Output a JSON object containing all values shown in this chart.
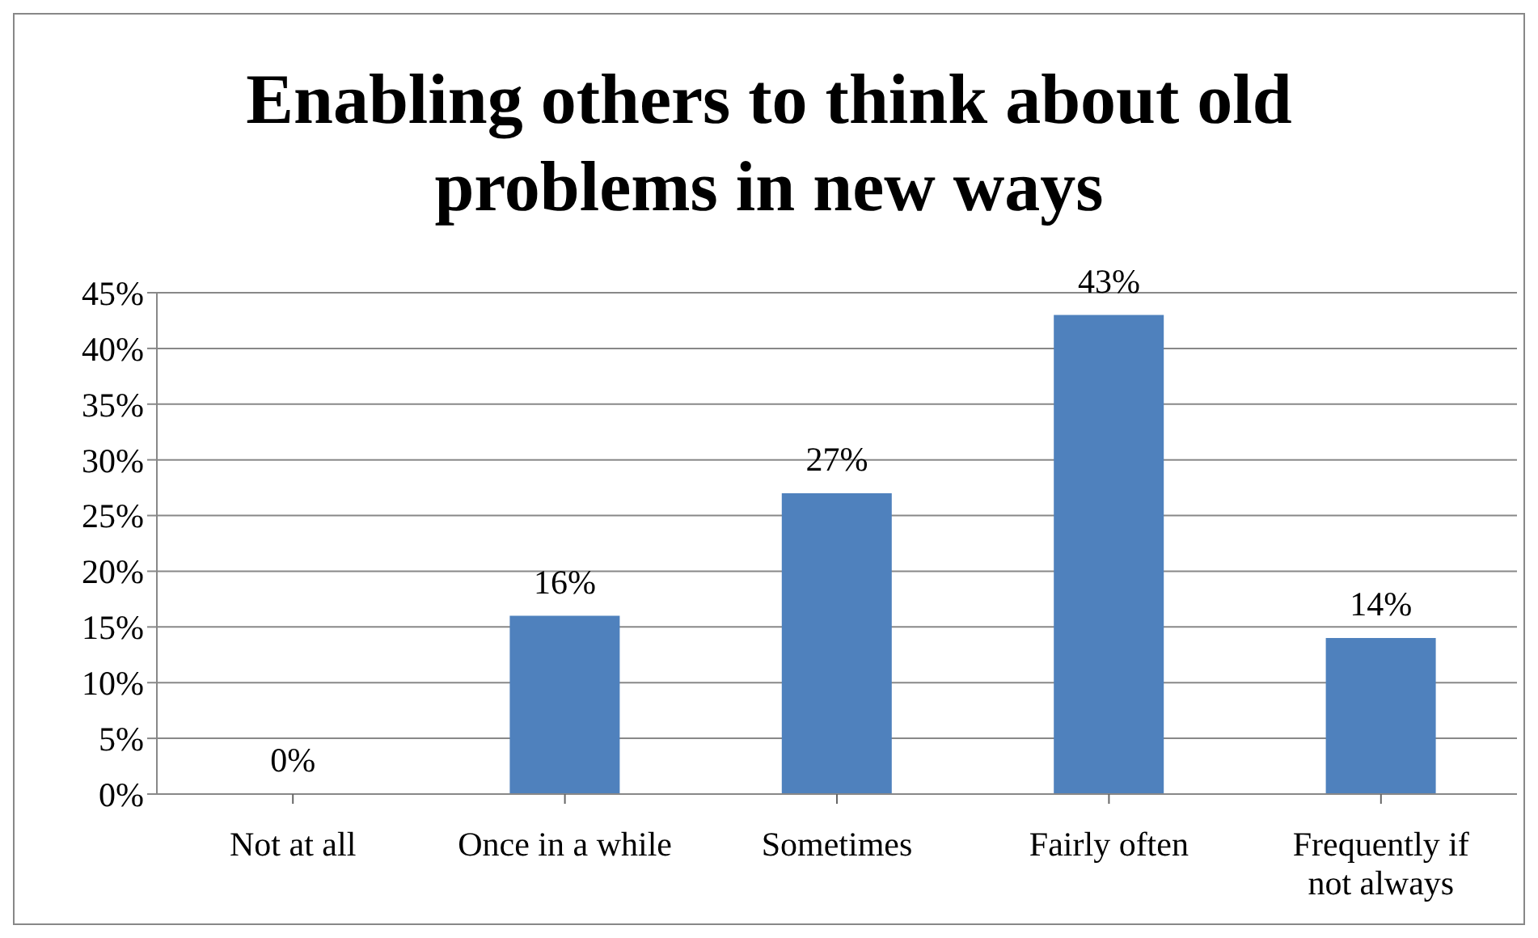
{
  "chart_data": {
    "type": "bar",
    "title": "Enabling others to think about old problems in new ways",
    "categories": [
      "Not at all",
      "Once in a while",
      "Sometimes",
      "Fairly often",
      "Frequently if not always"
    ],
    "values": [
      0,
      16,
      27,
      43,
      14
    ],
    "value_labels": [
      "0%",
      "16%",
      "27%",
      "43%",
      "14%"
    ],
    "color": "#4f81bd",
    "ylim": [
      0,
      45
    ],
    "yticks": [
      {
        "value": 0,
        "label": "0%"
      },
      {
        "value": 5,
        "label": "5%"
      },
      {
        "value": 10,
        "label": "10%"
      },
      {
        "value": 15,
        "label": "15%"
      },
      {
        "value": 20,
        "label": "20%"
      },
      {
        "value": 25,
        "label": "25%"
      },
      {
        "value": 30,
        "label": "30%"
      },
      {
        "value": 35,
        "label": "35%"
      },
      {
        "value": 40,
        "label": "40%"
      },
      {
        "value": 45,
        "label": "45%"
      }
    ],
    "grid": "y"
  }
}
